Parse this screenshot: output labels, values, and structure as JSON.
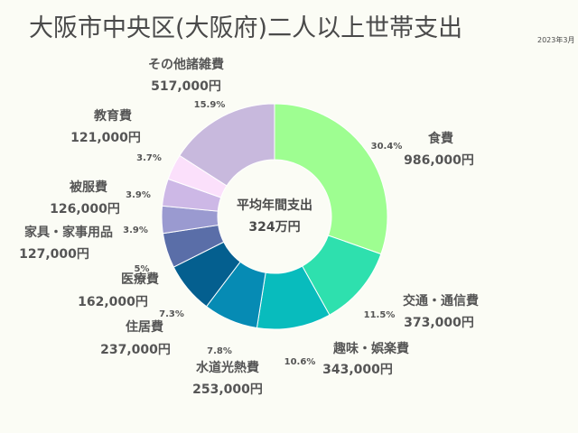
{
  "title": "大阪市中央区(大阪府)二人以上世帯支出",
  "date": "2023年3月",
  "center": {
    "line1": "平均年間支出",
    "line2": "324万円"
  },
  "chart_data": {
    "type": "pie",
    "title": "大阪市中央区(大阪府)二人以上世帯支出",
    "donut": true,
    "start": "12 o'clock, clockwise",
    "slices": [
      {
        "label": "食費",
        "value": "986,000円",
        "amount": 986000,
        "pct": "30.4%",
        "pct_value": 30.4,
        "color": "#9efe91"
      },
      {
        "label": "交通・通信費",
        "value": "373,000円",
        "amount": 373000,
        "pct": "11.5%",
        "pct_value": 11.5,
        "color": "#2ee0ae"
      },
      {
        "label": "趣味・娯楽費",
        "value": "343,000円",
        "amount": 343000,
        "pct": "10.6%",
        "pct_value": 10.6,
        "color": "#08bcbd"
      },
      {
        "label": "水道光熱費",
        "value": "253,000円",
        "amount": 253000,
        "pct": "7.8%",
        "pct_value": 7.8,
        "color": "#068bb4"
      },
      {
        "label": "住居費",
        "value": "237,000円",
        "amount": 237000,
        "pct": "7.3%",
        "pct_value": 7.3,
        "color": "#045f8f"
      },
      {
        "label": "医療費",
        "value": "162,000円",
        "amount": 162000,
        "pct": "5%",
        "pct_value": 5.0,
        "color": "#5a6ea8"
      },
      {
        "label": "家具・家事用品",
        "value": "127,000円",
        "amount": 127000,
        "pct": "3.9%",
        "pct_value": 3.9,
        "color": "#9a9ad0"
      },
      {
        "label": "被服費",
        "value": "126,000円",
        "amount": 126000,
        "pct": "3.9%",
        "pct_value": 3.9,
        "color": "#cdb8e6"
      },
      {
        "label": "教育費",
        "value": "121,000円",
        "amount": 121000,
        "pct": "3.7%",
        "pct_value": 3.7,
        "color": "#fbe0fb"
      },
      {
        "label": "その他諸雑費",
        "value": "517,000円",
        "amount": 517000,
        "pct": "15.9%",
        "pct_value": 15.9,
        "color": "#c8b9dd"
      }
    ]
  }
}
